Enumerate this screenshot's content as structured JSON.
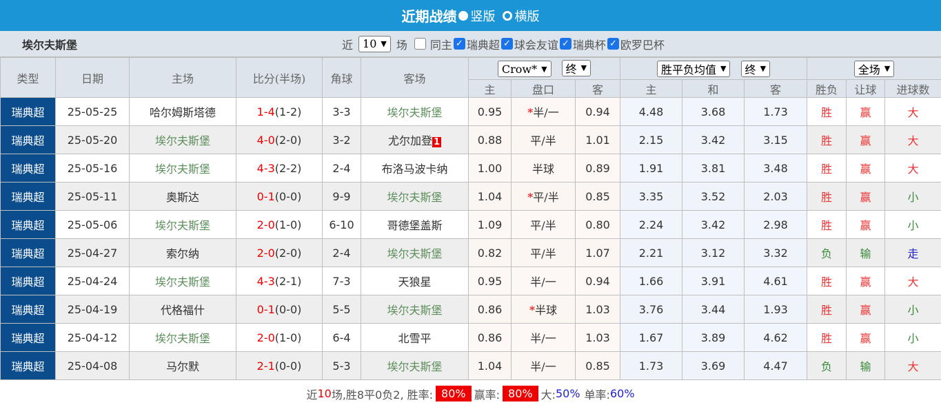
{
  "header": {
    "title": "近期战绩",
    "opt_vertical": "竖版",
    "opt_horizontal": "横版"
  },
  "filter": {
    "team": "埃尔夫斯堡",
    "near": "近",
    "count": "10",
    "unit": "场",
    "same_home": "同主",
    "leagues": [
      "瑞典超",
      "球会友谊",
      "瑞典杯",
      "欧罗巴杯"
    ]
  },
  "columns": {
    "type": "类型",
    "date": "日期",
    "home": "主场",
    "score": "比分(半场)",
    "corner": "角球",
    "away": "客场",
    "company": "Crow*",
    "company_state": "终",
    "avg": "胜平负均值",
    "avg_state": "终",
    "period": "全场",
    "h": "主",
    "line": "盘口",
    "a": "客",
    "h2": "主",
    "d": "和",
    "a2": "客",
    "wl": "胜负",
    "ah": "让球",
    "ou": "进球数"
  },
  "rows": [
    {
      "type": "瑞典超",
      "date": "25-05-25",
      "home": "哈尔姆斯塔德",
      "score": "1-4",
      "half": "(1-2)",
      "corner": "3-3",
      "away": "埃尔夫斯堡",
      "h": "0.95",
      "star": "*",
      "line": "半/一",
      "a": "0.94",
      "w": "4.48",
      "d": "3.68",
      "l": "1.73",
      "wl": "胜",
      "ah": "赢",
      "ou": "大"
    },
    {
      "type": "瑞典超",
      "date": "25-05-20",
      "home": "埃尔夫斯堡",
      "score": "4-0",
      "half": "(2-0)",
      "corner": "3-2",
      "away": "尤尔加登",
      "card": "1",
      "h": "0.88",
      "star": "",
      "line": "平/半",
      "a": "1.01",
      "w": "2.15",
      "d": "3.42",
      "l": "3.15",
      "wl": "胜",
      "ah": "赢",
      "ou": "大"
    },
    {
      "type": "瑞典超",
      "date": "25-05-16",
      "home": "埃尔夫斯堡",
      "score": "4-3",
      "half": "(2-2)",
      "corner": "2-4",
      "away": "布洛马波卡纳",
      "h": "1.00",
      "star": "",
      "line": "半球",
      "a": "0.89",
      "w": "1.91",
      "d": "3.81",
      "l": "3.48",
      "wl": "胜",
      "ah": "赢",
      "ou": "大"
    },
    {
      "type": "瑞典超",
      "date": "25-05-11",
      "home": "奥斯达",
      "score": "0-1",
      "half": "(0-0)",
      "corner": "9-9",
      "away": "埃尔夫斯堡",
      "h": "1.04",
      "star": "*",
      "line": "平/半",
      "a": "0.85",
      "w": "3.35",
      "d": "3.52",
      "l": "2.03",
      "wl": "胜",
      "ah": "赢",
      "ou": "小"
    },
    {
      "type": "瑞典超",
      "date": "25-05-06",
      "home": "埃尔夫斯堡",
      "score": "2-0",
      "half": "(1-0)",
      "corner": "6-10",
      "away": "哥德堡盖斯",
      "h": "1.09",
      "star": "",
      "line": "平/半",
      "a": "0.80",
      "w": "2.24",
      "d": "3.42",
      "l": "2.98",
      "wl": "胜",
      "ah": "赢",
      "ou": "小"
    },
    {
      "type": "瑞典超",
      "date": "25-04-27",
      "home": "索尔纳",
      "score": "2-0",
      "half": "(2-0)",
      "corner": "2-4",
      "away": "埃尔夫斯堡",
      "h": "0.82",
      "star": "",
      "line": "平/半",
      "a": "1.07",
      "w": "2.21",
      "d": "3.12",
      "l": "3.32",
      "wl": "负",
      "ah": "输",
      "ou": "走"
    },
    {
      "type": "瑞典超",
      "date": "25-04-24",
      "home": "埃尔夫斯堡",
      "score": "4-3",
      "half": "(2-1)",
      "corner": "7-3",
      "away": "天狼星",
      "h": "0.95",
      "star": "",
      "line": "半/一",
      "a": "0.94",
      "w": "1.66",
      "d": "3.91",
      "l": "4.61",
      "wl": "胜",
      "ah": "赢",
      "ou": "大"
    },
    {
      "type": "瑞典超",
      "date": "25-04-19",
      "home": "代格福什",
      "score": "0-1",
      "half": "(0-0)",
      "corner": "5-5",
      "away": "埃尔夫斯堡",
      "h": "0.86",
      "star": "*",
      "line": "半球",
      "a": "1.03",
      "w": "3.76",
      "d": "3.44",
      "l": "1.93",
      "wl": "胜",
      "ah": "赢",
      "ou": "小"
    },
    {
      "type": "瑞典超",
      "date": "25-04-12",
      "home": "埃尔夫斯堡",
      "score": "2-0",
      "half": "(1-0)",
      "corner": "6-4",
      "away": "北雪平",
      "h": "0.86",
      "star": "",
      "line": "半/一",
      "a": "1.03",
      "w": "1.67",
      "d": "3.89",
      "l": "4.62",
      "wl": "胜",
      "ah": "赢",
      "ou": "小"
    },
    {
      "type": "瑞典超",
      "date": "25-04-08",
      "home": "马尔默",
      "score": "2-1",
      "half": "(0-0)",
      "corner": "5-3",
      "away": "埃尔夫斯堡",
      "h": "1.04",
      "star": "",
      "line": "半/一",
      "a": "0.85",
      "w": "1.73",
      "d": "3.69",
      "l": "4.47",
      "wl": "负",
      "ah": "输",
      "ou": "大"
    }
  ],
  "focus_team": "埃尔夫斯堡",
  "footer": {
    "p1": "近",
    "n": "10",
    "p2": "场,胜8平0负2, 胜率:",
    "win_rate": "80%",
    "p3": "赢率:",
    "ah_rate": "80%",
    "p4": "大:",
    "over": "50%",
    "p5": "单率:",
    "odd": "60%"
  },
  "colors": {
    "brand": "#1b95d6",
    "type_bg": "#0b4c8c",
    "win": "#ee3333",
    "lose": "#3a8a3a",
    "push": "#2222cc",
    "team": "#5d8f5d"
  }
}
